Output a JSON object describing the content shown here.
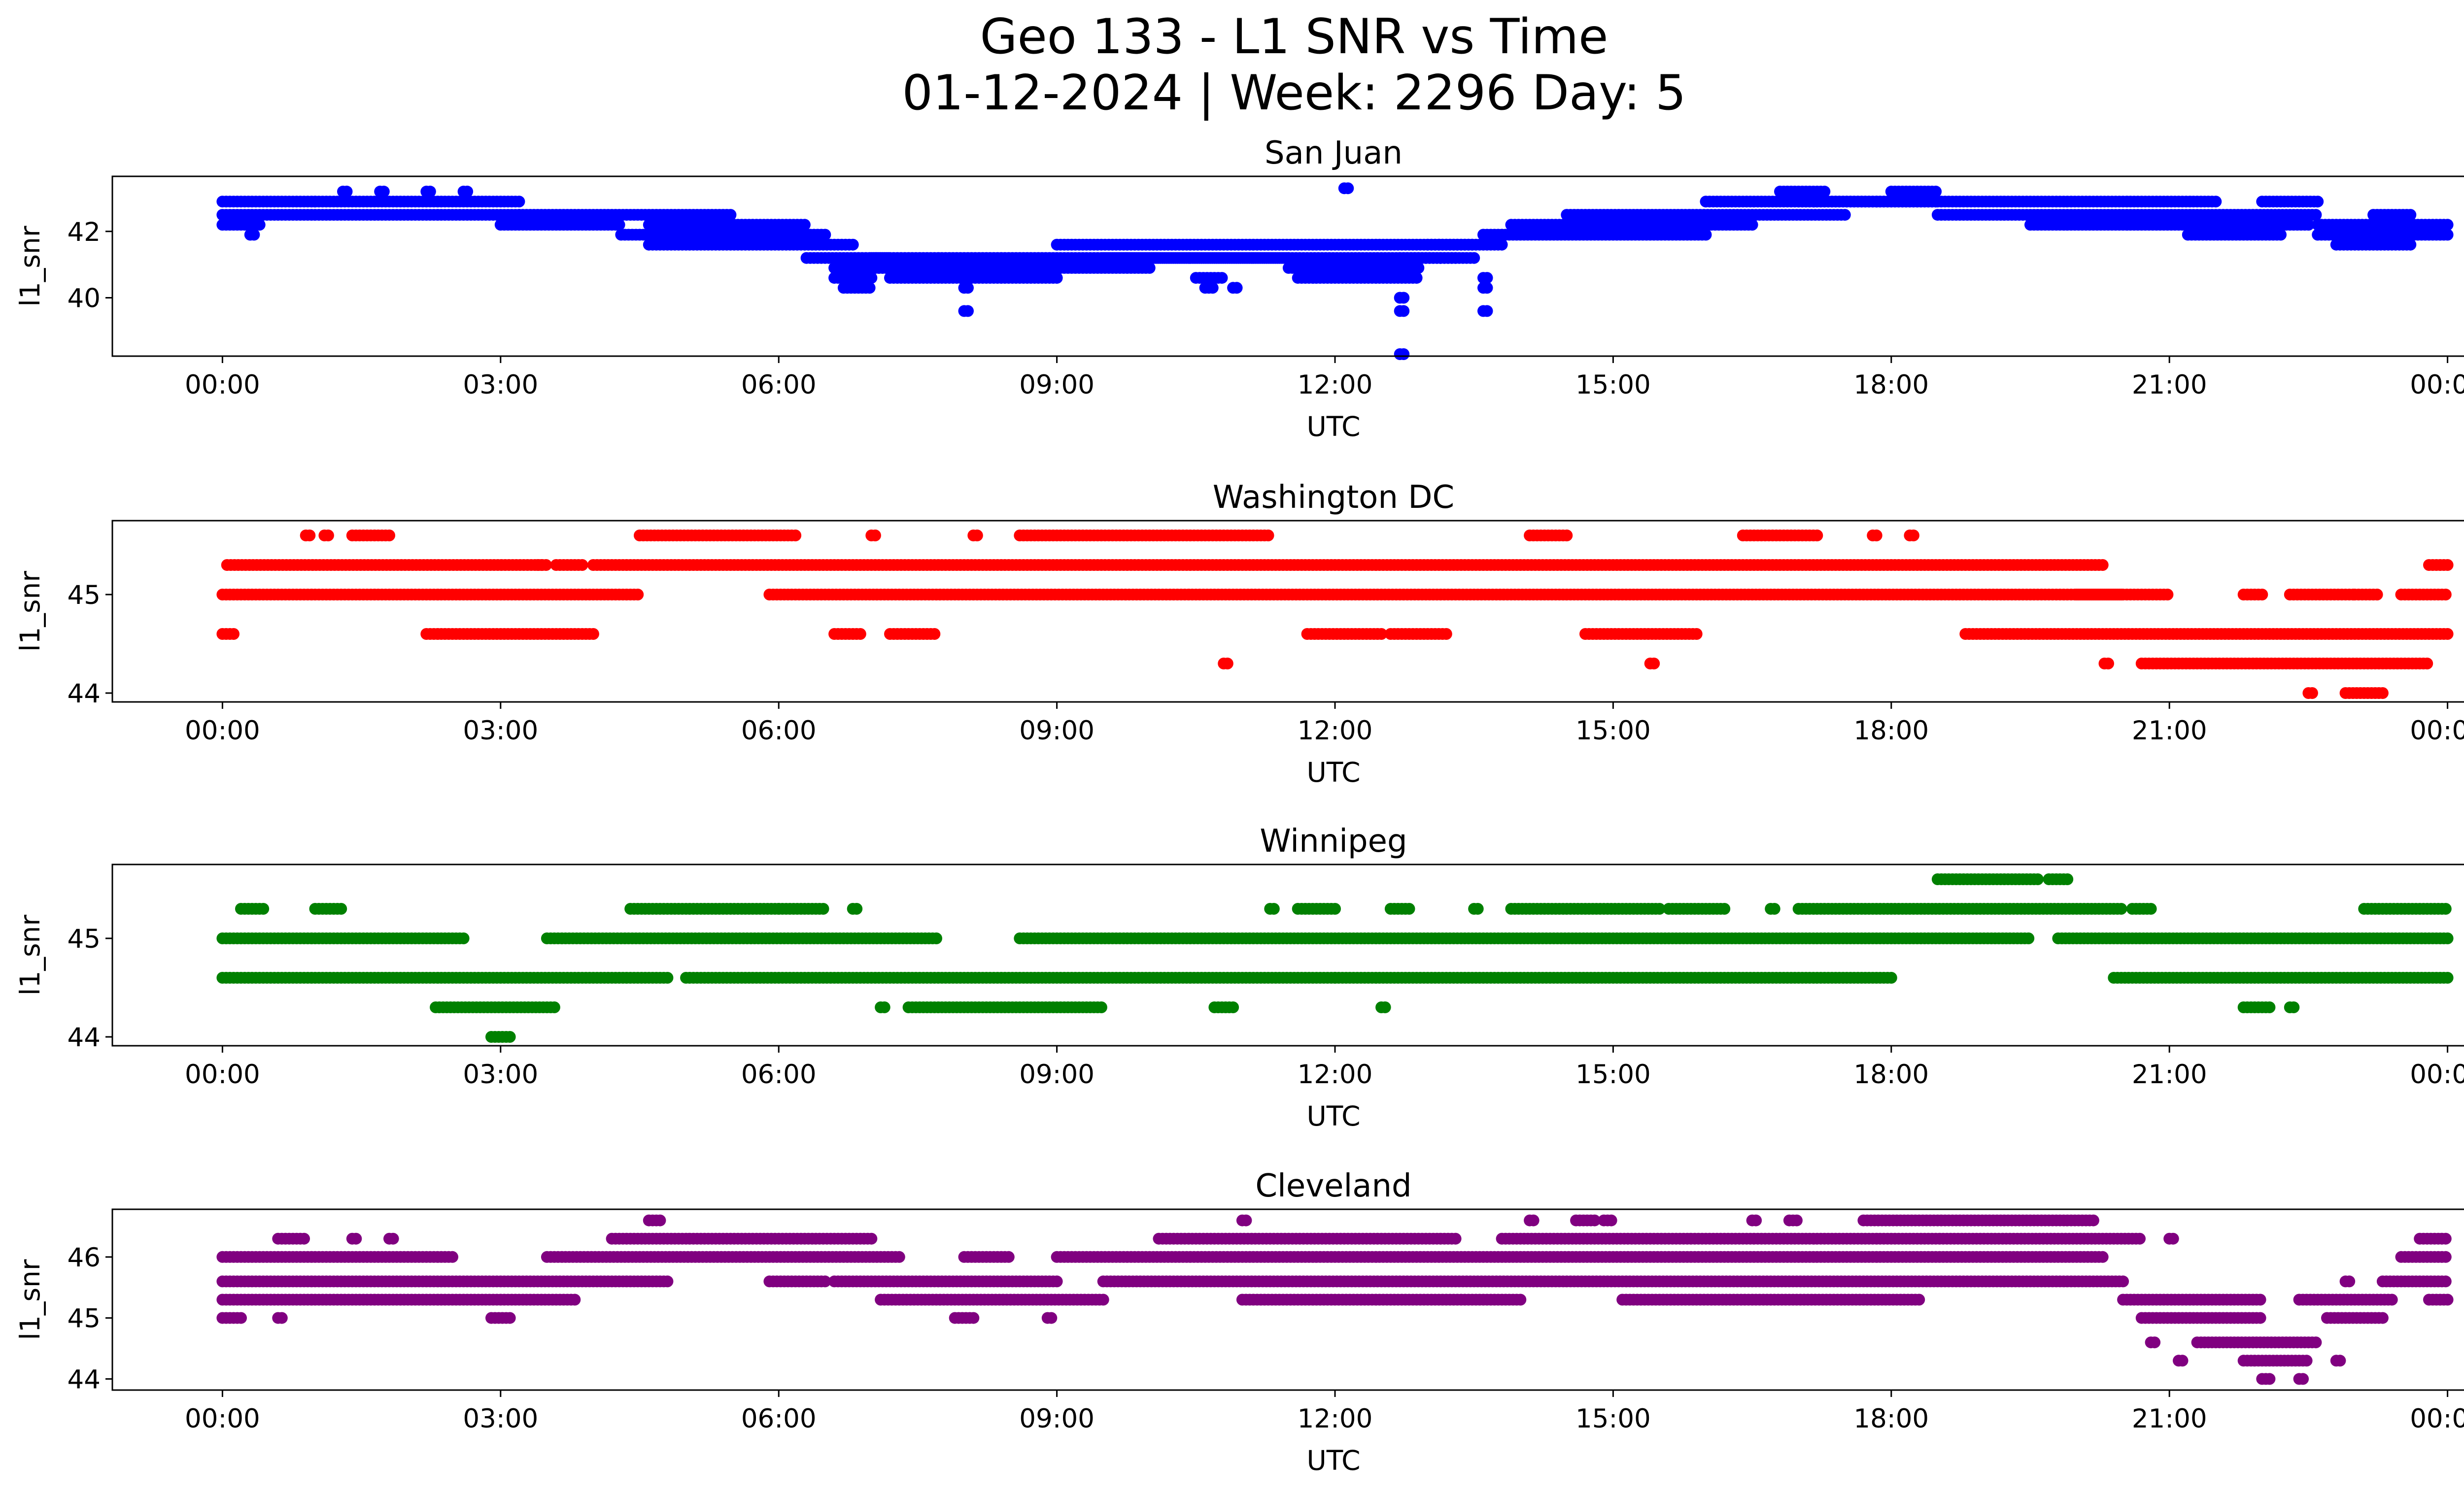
{
  "figure": {
    "title_line1": "Geo 133 - L1 SNR vs Time",
    "title_line2": "01-12-2024 | Week: 2296 Day: 5"
  },
  "chart_data": [
    {
      "type": "scatter",
      "title": "San Juan",
      "xlabel": "UTC",
      "ylabel": "l1_snr",
      "color": "#0000ff",
      "xlim_hours": [
        -1.1875,
        25.1875
      ],
      "ylim": [
        38.3,
        43.6
      ],
      "x_ticks": [
        "00:00",
        "03:00",
        "06:00",
        "09:00",
        "12:00",
        "15:00",
        "18:00",
        "21:00",
        "00:00"
      ],
      "y_ticks": [
        40,
        42
      ],
      "series": [
        {
          "levels": [
            40.0,
            40.3,
            40.6,
            40.9,
            41.2,
            41.6,
            41.9,
            42.2,
            42.5,
            42.9,
            43.2,
            43.3,
            39.6,
            38.3
          ],
          "segments": [
            [
              0.0,
              1.0,
              42.9
            ],
            [
              0.0,
              3.2,
              42.5
            ],
            [
              0.0,
              0.4,
              42.2
            ],
            [
              0.3,
              0.35,
              41.9
            ],
            [
              1.0,
              3.2,
              42.9
            ],
            [
              1.3,
              1.35,
              43.2
            ],
            [
              1.7,
              1.75,
              43.2
            ],
            [
              2.2,
              2.25,
              43.2
            ],
            [
              2.6,
              2.65,
              43.2
            ],
            [
              3.0,
              4.3,
              42.2
            ],
            [
              3.2,
              5.5,
              42.5
            ],
            [
              4.3,
              6.5,
              41.9
            ],
            [
              4.6,
              6.3,
              42.2
            ],
            [
              4.6,
              6.8,
              41.6
            ],
            [
              6.3,
              7.2,
              41.2
            ],
            [
              6.6,
              7.2,
              40.9
            ],
            [
              6.6,
              7.0,
              40.6
            ],
            [
              6.7,
              7.0,
              40.3
            ],
            [
              7.0,
              11.5,
              41.2
            ],
            [
              7.0,
              10.0,
              40.9
            ],
            [
              7.2,
              9.0,
              40.6
            ],
            [
              8.0,
              8.05,
              39.6
            ],
            [
              8.0,
              8.05,
              40.3
            ],
            [
              9.0,
              13.5,
              41.6
            ],
            [
              9.5,
              11.5,
              41.2
            ],
            [
              10.5,
              10.8,
              40.6
            ],
            [
              10.6,
              10.7,
              40.3
            ],
            [
              10.9,
              10.95,
              40.3
            ],
            [
              11.5,
              13.3,
              41.2
            ],
            [
              11.5,
              12.9,
              40.9
            ],
            [
              11.6,
              12.9,
              40.6
            ],
            [
              12.1,
              12.15,
              43.3
            ],
            [
              12.7,
              12.75,
              40.0
            ],
            [
              12.7,
              12.75,
              39.6
            ],
            [
              12.7,
              12.75,
              38.3
            ],
            [
              12.7,
              13.5,
              41.2
            ],
            [
              13.0,
              13.8,
              41.6
            ],
            [
              13.6,
              13.65,
              40.6
            ],
            [
              13.6,
              13.65,
              40.3
            ],
            [
              13.6,
              13.65,
              39.6
            ],
            [
              13.6,
              16.0,
              41.9
            ],
            [
              13.9,
              16.5,
              42.2
            ],
            [
              14.5,
              17.5,
              42.5
            ],
            [
              16.0,
              18.5,
              42.9
            ],
            [
              16.8,
              17.3,
              43.2
            ],
            [
              17.0,
              18.5,
              42.9
            ],
            [
              18.0,
              18.5,
              43.2
            ],
            [
              18.5,
              22.6,
              42.5
            ],
            [
              18.5,
              21.5,
              42.9
            ],
            [
              19.5,
              22.5,
              42.2
            ],
            [
              21.2,
              22.2,
              41.9
            ],
            [
              22.0,
              22.6,
              42.9
            ],
            [
              22.6,
              24.0,
              42.2
            ],
            [
              22.6,
              24.0,
              41.9
            ],
            [
              22.8,
              23.6,
              41.6
            ],
            [
              23.2,
              23.6,
              42.5
            ]
          ]
        }
      ]
    },
    {
      "type": "scatter",
      "title": "Washington DC",
      "xlabel": "UTC",
      "ylabel": "l1_snr",
      "color": "#ff0000",
      "xlim_hours": [
        -1.1875,
        25.1875
      ],
      "ylim": [
        43.93,
        45.73
      ],
      "x_ticks": [
        "00:00",
        "03:00",
        "06:00",
        "09:00",
        "12:00",
        "15:00",
        "18:00",
        "21:00",
        "00:00"
      ],
      "y_ticks": [
        44,
        45
      ],
      "series": [
        {
          "levels": [
            44.0,
            44.3,
            44.6,
            45.0,
            45.3,
            45.6
          ],
          "segments": [
            [
              0.0,
              0.15,
              44.6
            ],
            [
              0.0,
              4.5,
              45.0
            ],
            [
              0.05,
              3.5,
              45.3
            ],
            [
              0.9,
              0.95,
              45.6
            ],
            [
              1.1,
              1.15,
              45.6
            ],
            [
              1.4,
              1.8,
              45.6
            ],
            [
              2.2,
              4.0,
              44.6
            ],
            [
              3.4,
              3.45,
              45.3
            ],
            [
              3.6,
              3.9,
              45.3
            ],
            [
              4.0,
              20.3,
              45.3
            ],
            [
              4.5,
              6.2,
              45.6
            ],
            [
              5.9,
              21.0,
              45.0
            ],
            [
              6.6,
              6.9,
              44.6
            ],
            [
              7.0,
              7.05,
              45.6
            ],
            [
              7.2,
              7.7,
              44.6
            ],
            [
              8.1,
              8.15,
              45.6
            ],
            [
              8.6,
              11.3,
              45.6
            ],
            [
              10.8,
              10.85,
              44.3
            ],
            [
              11.7,
              12.5,
              44.6
            ],
            [
              12.6,
              13.2,
              44.6
            ],
            [
              14.1,
              14.5,
              45.6
            ],
            [
              14.7,
              15.9,
              44.6
            ],
            [
              15.4,
              15.45,
              44.3
            ],
            [
              16.4,
              17.2,
              45.6
            ],
            [
              17.8,
              17.85,
              45.6
            ],
            [
              18.2,
              18.25,
              45.6
            ],
            [
              18.8,
              24.0,
              44.6
            ],
            [
              20.0,
              20.5,
              45.0
            ],
            [
              20.3,
              20.35,
              44.3
            ],
            [
              20.7,
              23.8,
              44.3
            ],
            [
              21.8,
              22.0,
              45.0
            ],
            [
              22.3,
              23.0,
              45.0
            ],
            [
              22.5,
              22.55,
              44.0
            ],
            [
              22.9,
              23.3,
              44.0
            ],
            [
              23.0,
              23.25,
              45.0
            ],
            [
              23.5,
              24.0,
              45.0
            ],
            [
              23.8,
              24.0,
              45.3
            ]
          ]
        }
      ]
    },
    {
      "type": "scatter",
      "title": "Winnipeg",
      "xlabel": "UTC",
      "ylabel": "l1_snr",
      "color": "#008000",
      "xlim_hours": [
        -1.1875,
        25.1875
      ],
      "ylim": [
        43.93,
        45.73
      ],
      "x_ticks": [
        "00:00",
        "03:00",
        "06:00",
        "09:00",
        "12:00",
        "15:00",
        "18:00",
        "21:00",
        "00:00"
      ],
      "y_ticks": [
        44,
        45
      ],
      "series": [
        {
          "levels": [
            44.0,
            44.3,
            44.6,
            45.0,
            45.3,
            45.6
          ],
          "segments": [
            [
              0.0,
              2.6,
              45.0
            ],
            [
              0.0,
              4.8,
              44.6
            ],
            [
              0.2,
              0.45,
              45.3
            ],
            [
              1.0,
              1.3,
              45.3
            ],
            [
              2.3,
              3.6,
              44.3
            ],
            [
              2.9,
              3.1,
              44.0
            ],
            [
              3.5,
              7.7,
              45.0
            ],
            [
              4.4,
              6.0,
              45.3
            ],
            [
              5.0,
              12.0,
              44.6
            ],
            [
              6.0,
              6.5,
              45.3
            ],
            [
              6.8,
              6.85,
              45.3
            ],
            [
              7.1,
              7.15,
              44.3
            ],
            [
              7.4,
              9.5,
              44.3
            ],
            [
              8.6,
              19.5,
              45.0
            ],
            [
              10.7,
              10.9,
              44.3
            ],
            [
              11.3,
              11.35,
              45.3
            ],
            [
              11.6,
              12.0,
              45.3
            ],
            [
              12.0,
              18.0,
              44.6
            ],
            [
              12.5,
              12.55,
              44.3
            ],
            [
              12.6,
              12.8,
              45.3
            ],
            [
              13.5,
              13.55,
              45.3
            ],
            [
              13.9,
              15.5,
              45.3
            ],
            [
              15.6,
              16.2,
              45.3
            ],
            [
              16.7,
              16.75,
              45.3
            ],
            [
              17.0,
              20.5,
              45.3
            ],
            [
              18.5,
              19.6,
              45.6
            ],
            [
              19.7,
              19.9,
              45.6
            ],
            [
              19.8,
              24.0,
              45.0
            ],
            [
              20.4,
              24.0,
              44.6
            ],
            [
              20.6,
              20.8,
              45.3
            ],
            [
              21.8,
              22.1,
              44.3
            ],
            [
              22.3,
              22.35,
              44.3
            ],
            [
              23.1,
              24.0,
              45.3
            ]
          ]
        }
      ]
    },
    {
      "type": "scatter",
      "title": "Cleveland",
      "xlabel": "UTC",
      "ylabel": "l1_snr",
      "color": "#800080",
      "xlim_hours": [
        -1.1875,
        25.1875
      ],
      "ylim": [
        43.85,
        46.75
      ],
      "x_ticks": [
        "00:00",
        "03:00",
        "06:00",
        "09:00",
        "12:00",
        "15:00",
        "18:00",
        "21:00",
        "00:00"
      ],
      "y_ticks": [
        44,
        45,
        46
      ],
      "series": [
        {
          "levels": [
            44.0,
            44.3,
            44.6,
            45.0,
            45.3,
            45.6,
            46.0,
            46.3,
            46.6
          ],
          "segments": [
            [
              0.0,
              0.2,
              45.0
            ],
            [
              0.0,
              2.5,
              46.0
            ],
            [
              0.0,
              4.8,
              45.6
            ],
            [
              0.0,
              3.8,
              45.3
            ],
            [
              0.6,
              0.65,
              45.0
            ],
            [
              0.6,
              0.9,
              46.3
            ],
            [
              1.4,
              1.45,
              46.3
            ],
            [
              1.8,
              1.85,
              46.3
            ],
            [
              2.9,
              3.1,
              45.0
            ],
            [
              3.5,
              7.3,
              46.0
            ],
            [
              4.2,
              7.0,
              46.3
            ],
            [
              4.6,
              4.75,
              46.6
            ],
            [
              5.9,
              6.5,
              45.6
            ],
            [
              6.6,
              9.0,
              45.6
            ],
            [
              7.1,
              9.5,
              45.3
            ],
            [
              7.9,
              8.1,
              45.0
            ],
            [
              8.0,
              8.5,
              46.0
            ],
            [
              8.9,
              8.95,
              45.0
            ],
            [
              9.0,
              20.3,
              46.0
            ],
            [
              9.5,
              20.5,
              45.6
            ],
            [
              10.1,
              13.3,
              46.3
            ],
            [
              11.0,
              11.05,
              46.6
            ],
            [
              11.0,
              14.0,
              45.3
            ],
            [
              13.8,
              20.7,
              46.3
            ],
            [
              14.1,
              14.15,
              46.6
            ],
            [
              14.6,
              14.8,
              46.6
            ],
            [
              14.9,
              15.0,
              46.6
            ],
            [
              15.1,
              18.3,
              45.3
            ],
            [
              16.5,
              16.55,
              46.6
            ],
            [
              16.9,
              17.0,
              46.6
            ],
            [
              17.7,
              20.2,
              46.6
            ],
            [
              20.5,
              22.0,
              45.3
            ],
            [
              20.7,
              22.0,
              45.0
            ],
            [
              20.8,
              20.85,
              44.6
            ],
            [
              21.0,
              21.05,
              46.3
            ],
            [
              21.1,
              21.15,
              44.3
            ],
            [
              21.3,
              22.6,
              44.6
            ],
            [
              21.8,
              22.5,
              44.3
            ],
            [
              22.0,
              22.1,
              44.0
            ],
            [
              22.4,
              22.45,
              44.0
            ],
            [
              22.4,
              23.4,
              45.3
            ],
            [
              22.7,
              23.3,
              45.0
            ],
            [
              22.9,
              22.95,
              45.6
            ],
            [
              22.8,
              22.85,
              44.3
            ],
            [
              23.3,
              24.0,
              45.6
            ],
            [
              23.5,
              24.0,
              46.0
            ],
            [
              23.7,
              24.0,
              46.3
            ],
            [
              23.8,
              24.0,
              45.3
            ]
          ]
        }
      ]
    }
  ]
}
